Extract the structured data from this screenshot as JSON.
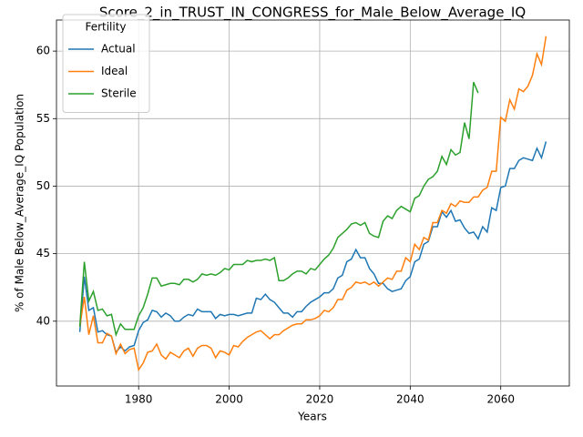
{
  "chart_data": {
    "type": "line",
    "title": "Score_2_in_TRUST_IN_CONGRESS_for_Male_Below_Average_IQ",
    "xlabel": "Years",
    "ylabel": "% of Male Below_Average_IQ Population",
    "legend_title": "Fertility",
    "legend": "upper left",
    "grid": true,
    "x": [
      1967,
      1968,
      1969,
      1970,
      1971,
      1972,
      1973,
      1974,
      1975,
      1976,
      1977,
      1978,
      1979,
      1980,
      1981,
      1982,
      1983,
      1984,
      1985,
      1986,
      1987,
      1988,
      1989,
      1990,
      1991,
      1992,
      1993,
      1994,
      1995,
      1996,
      1997,
      1998,
      1999,
      2000,
      2001,
      2002,
      2003,
      2004,
      2005,
      2006,
      2007,
      2008,
      2009,
      2010,
      2011,
      2012,
      2013,
      2014,
      2015,
      2016,
      2017,
      2018,
      2019,
      2020,
      2021,
      2022,
      2023,
      2024,
      2025,
      2026,
      2027,
      2028,
      2029,
      2030,
      2031,
      2032,
      2033,
      2034,
      2035,
      2036,
      2037,
      2038,
      2039,
      2040,
      2041,
      2042,
      2043,
      2044,
      2045,
      2046,
      2047,
      2048,
      2049,
      2050,
      2051,
      2052,
      2053,
      2054,
      2055,
      2056,
      2057,
      2058,
      2059,
      2060,
      2061,
      2062,
      2063,
      2064,
      2065,
      2066,
      2067,
      2068,
      2069,
      2070
    ],
    "series": [
      {
        "name": "Actual",
        "color": "#1f77b4",
        "values": [
          39.2,
          43.3,
          40.8,
          41.0,
          39.2,
          39.3,
          39.0,
          38.9,
          37.7,
          38.1,
          37.8,
          38.1,
          38.2,
          39.3,
          39.9,
          40.1,
          40.8,
          40.7,
          40.3,
          40.6,
          40.4,
          40.0,
          40.0,
          40.3,
          40.5,
          40.4,
          40.9,
          40.7,
          40.7,
          40.7,
          40.2,
          40.5,
          40.4,
          40.5,
          40.5,
          40.4,
          40.5,
          40.6,
          40.6,
          41.7,
          41.6,
          42.0,
          41.6,
          41.4,
          41.0,
          40.6,
          40.6,
          40.3,
          40.7,
          40.7,
          41.1,
          41.4,
          41.6,
          41.8,
          42.1,
          42.1,
          42.4,
          43.2,
          43.4,
          44.4,
          44.6,
          45.3,
          44.7,
          44.7,
          43.9,
          43.5,
          42.8,
          42.8,
          42.4,
          42.2,
          42.3,
          42.4,
          43.0,
          43.3,
          44.4,
          44.6,
          45.7,
          45.9,
          47.0,
          47.0,
          48.1,
          47.7,
          48.2,
          47.4,
          47.5,
          46.9,
          46.5,
          46.6,
          46.1,
          47.0,
          46.6,
          48.4,
          48.2,
          49.9,
          50.0,
          51.3,
          51.3,
          51.9,
          52.1,
          52.0,
          51.9,
          52.8,
          52.1,
          53.3
        ]
      },
      {
        "name": "Ideal",
        "color": "#ff7f0e",
        "values": [
          39.6,
          41.8,
          39.0,
          40.4,
          38.4,
          38.4,
          39.1,
          38.9,
          37.6,
          38.3,
          37.6,
          37.9,
          38.0,
          36.4,
          36.9,
          37.7,
          37.8,
          38.3,
          37.5,
          37.2,
          37.7,
          37.5,
          37.3,
          37.8,
          38.0,
          37.4,
          38.0,
          38.2,
          38.2,
          38.0,
          37.3,
          37.8,
          37.7,
          37.5,
          38.2,
          38.1,
          38.5,
          38.8,
          39.0,
          39.2,
          39.3,
          39.0,
          38.7,
          39.0,
          39.0,
          39.3,
          39.5,
          39.7,
          39.8,
          39.8,
          40.1,
          40.1,
          40.2,
          40.4,
          40.8,
          40.7,
          41.0,
          41.6,
          41.6,
          42.3,
          42.5,
          42.9,
          42.8,
          42.9,
          42.7,
          42.9,
          42.6,
          42.9,
          43.2,
          43.1,
          43.7,
          43.7,
          44.7,
          44.4,
          45.7,
          45.3,
          46.2,
          46.0,
          47.3,
          47.3,
          48.2,
          48.0,
          48.7,
          48.5,
          48.9,
          48.8,
          48.8,
          49.2,
          49.2,
          49.7,
          49.9,
          51.1,
          51.1,
          55.1,
          54.8,
          56.4,
          55.7,
          57.2,
          57.0,
          57.4,
          58.2,
          59.8,
          59.0,
          61.1
        ]
      },
      {
        "name": "Sterile",
        "color": "#2ca02c",
        "values": [
          39.6,
          44.4,
          41.5,
          42.2,
          40.8,
          40.9,
          40.4,
          40.5,
          39.0,
          39.8,
          39.4,
          39.4,
          39.4,
          40.4,
          41.0,
          42.0,
          43.2,
          43.2,
          42.6,
          42.7,
          42.8,
          42.8,
          42.7,
          43.1,
          43.1,
          42.9,
          43.1,
          43.5,
          43.4,
          43.5,
          43.4,
          43.6,
          43.9,
          43.8,
          44.2,
          44.2,
          44.2,
          44.5,
          44.4,
          44.5,
          44.5,
          44.6,
          44.5,
          44.7,
          43.0,
          43.0,
          43.2,
          43.5,
          43.7,
          43.7,
          43.5,
          43.9,
          43.8,
          44.2,
          44.6,
          44.9,
          45.4,
          46.2,
          46.5,
          46.8,
          47.2,
          47.3,
          47.1,
          47.3,
          46.5,
          46.3,
          46.2,
          47.4,
          47.8,
          47.6,
          48.2,
          48.5,
          48.3,
          48.1,
          49.1,
          49.3,
          50.0,
          50.5,
          50.7,
          51.1,
          52.2,
          51.6,
          52.7,
          52.3,
          52.5,
          54.7,
          53.5,
          57.7,
          56.9,
          null,
          null,
          null,
          null,
          null,
          null,
          null,
          null,
          null,
          null,
          null,
          null,
          null,
          null,
          null
        ]
      }
    ],
    "xlim": [
      1961.85,
      2075.15
    ],
    "xticks": [
      1980,
      2000,
      2020,
      2040,
      2060
    ],
    "ylim": [
      35.2,
      62.3
    ],
    "yticks": [
      40,
      45,
      50,
      55,
      60
    ]
  }
}
